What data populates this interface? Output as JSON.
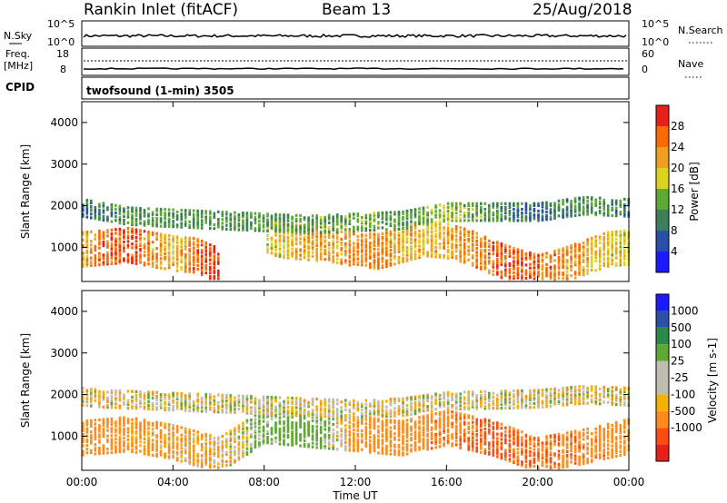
{
  "header": {
    "station": "Rankin Inlet (fitACF)",
    "beam": "Beam 13",
    "date": "25/Aug/2018"
  },
  "top_panels": {
    "nsky_label": "N.Sky",
    "nsky_ticks": [
      "10^5",
      "10^0"
    ],
    "nsearch_label": "N.Search",
    "nsearch_ticks": [
      "10^5",
      "10^0"
    ],
    "freq_label_1": "Freq.",
    "freq_label_2": "[MHz]",
    "freq_ticks": [
      "18",
      "8"
    ],
    "nave_label": "Nave",
    "nave_ticks": [
      "60",
      "0"
    ],
    "cpid_label": "CPID",
    "cpid_value": "twofsound (1-min) 3505"
  },
  "colors": {
    "power_scale": [
      "#1a1aff",
      "#2a4fa8",
      "#3d7f5a",
      "#5fa832",
      "#dcd31e",
      "#f0a01e",
      "#ff6a00",
      "#e8201a"
    ],
    "velocity_scale": [
      "#e8201a",
      "#ff4a10",
      "#ff8c1a",
      "#f5b000",
      "#bebeb0",
      "#bebeb0",
      "#5fa832",
      "#2a8a4a",
      "#2a50a8",
      "#1a1aff"
    ]
  },
  "chart_data": [
    {
      "type": "heatmap",
      "name": "power",
      "title": "",
      "xlabel": "",
      "ylabel": "Slant Range [km]",
      "xlim": [
        0,
        24
      ],
      "ylim": [
        180,
        4500
      ],
      "xticks": [
        "00:00",
        "04:00",
        "08:00",
        "12:00",
        "16:00",
        "20:00",
        "00:00"
      ],
      "yticks": [
        1000,
        2000,
        3000,
        4000
      ],
      "colorbar": {
        "label": "Power [dB]",
        "range": [
          0,
          32
        ],
        "ticks": [
          "4",
          "8",
          "12",
          "16",
          "20",
          "24",
          "28"
        ]
      },
      "series": [
        {
          "name": "main backscatter band",
          "time_hr": [
            0,
            1,
            2,
            3,
            4,
            5,
            6,
            7,
            8,
            9,
            10,
            11,
            12,
            13,
            14,
            15,
            16,
            17,
            18,
            19,
            20,
            21,
            22,
            23,
            24
          ],
          "range_km": [
            1000,
            1050,
            1100,
            1000,
            900,
            850,
            600,
            null,
            1300,
            1200,
            1150,
            1100,
            1000,
            950,
            1100,
            1250,
            1200,
            1050,
            800,
            600,
            450,
            600,
            800,
            1000,
            1050
          ],
          "power_db": [
            22,
            26,
            28,
            24,
            20,
            26,
            30,
            null,
            18,
            20,
            22,
            22,
            24,
            24,
            22,
            20,
            22,
            24,
            26,
            28,
            26,
            24,
            22,
            20,
            18
          ]
        },
        {
          "name": "upper echo band",
          "time_hr": [
            0,
            1,
            2,
            10,
            12,
            14,
            16,
            20,
            22,
            24
          ],
          "range_km": [
            2000,
            1900,
            1800,
            1600,
            1650,
            1700,
            1900,
            1900,
            2050,
            2000
          ],
          "power_db": [
            8,
            10,
            12,
            12,
            14,
            12,
            16,
            8,
            12,
            10
          ]
        }
      ]
    },
    {
      "type": "heatmap",
      "name": "velocity",
      "title": "",
      "xlabel": "Time UT",
      "ylabel": "Slant Range [km]",
      "xlim": [
        0,
        24
      ],
      "ylim": [
        180,
        4500
      ],
      "xticks": [
        "00:00",
        "04:00",
        "08:00",
        "12:00",
        "16:00",
        "20:00",
        "00:00"
      ],
      "yticks": [
        1000,
        2000,
        3000,
        4000
      ],
      "colorbar": {
        "label": "Velocity [m s-1]",
        "range": [
          -1000,
          1000
        ],
        "ticks": [
          "1000",
          "500",
          "100",
          "25",
          "-25",
          "-100",
          "-500",
          "-1000"
        ]
      },
      "series": [
        {
          "name": "main backscatter band",
          "time_hr": [
            0,
            2,
            4,
            6,
            8,
            10,
            12,
            14,
            16,
            18,
            20,
            22,
            24
          ],
          "range_km": [
            1000,
            1100,
            900,
            600,
            1300,
            1200,
            1100,
            1000,
            1250,
            1000,
            600,
            800,
            1050
          ],
          "velocity_ms": [
            -300,
            -200,
            -150,
            -100,
            200,
            300,
            -200,
            -300,
            -400,
            -600,
            -500,
            -400,
            -300
          ]
        },
        {
          "name": "near-zero upper band",
          "time_hr": [
            0,
            1,
            12,
            14,
            16,
            20,
            22,
            24
          ],
          "range_km": [
            2000,
            1950,
            1700,
            1750,
            1900,
            1950,
            2050,
            2000
          ],
          "velocity_ms": [
            0,
            5,
            10,
            -5,
            0,
            5,
            0,
            0
          ]
        }
      ]
    }
  ]
}
